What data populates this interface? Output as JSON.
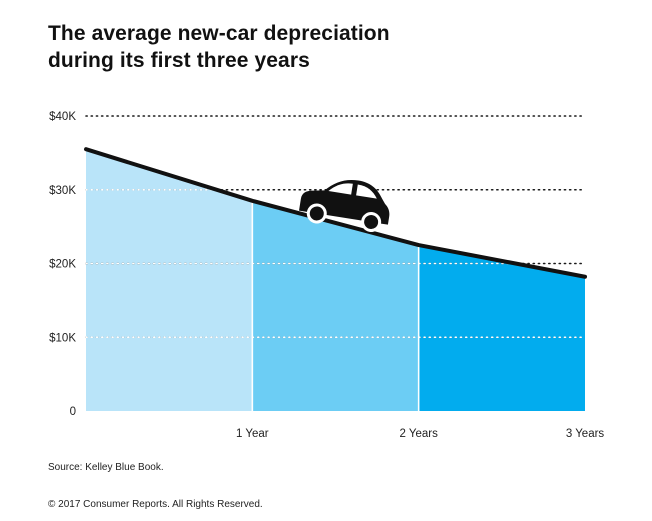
{
  "chart_data": {
    "type": "area",
    "title_lines": [
      "The average new-car depreciation",
      "during its first three years"
    ],
    "x": [
      0,
      1,
      2,
      3
    ],
    "x_tick_labels": [
      "",
      "1 Year",
      "2 Years",
      "3 Years"
    ],
    "values": [
      35500,
      28500,
      22500,
      18200
    ],
    "ylim": [
      0,
      40000
    ],
    "y_ticks": [
      0,
      10000,
      20000,
      30000,
      40000
    ],
    "y_tick_labels": [
      "0",
      "$10K",
      "$20K",
      "$30K",
      "$40K"
    ],
    "grid": "dotted",
    "segment_colors": [
      "#b9e4f9",
      "#6ccdf4",
      "#02acee"
    ],
    "line_color": "#111111",
    "annotation_icon": "car-icon"
  },
  "footer": {
    "source": "Source: Kelley Blue Book.",
    "copyright": "© 2017 Consumer Reports. All Rights Reserved."
  }
}
